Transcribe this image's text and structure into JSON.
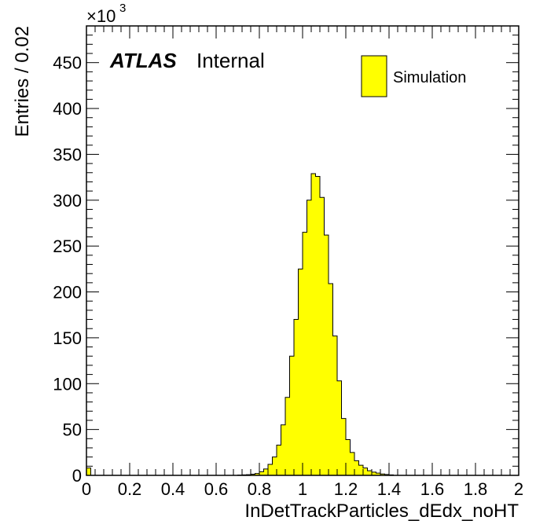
{
  "chart_data": {
    "type": "bar",
    "title": "",
    "xlabel": "InDetTrackParticles_dEdx_noHT",
    "ylabel": "Entries / 0.02",
    "y_multiplier_label": "×10",
    "y_multiplier_exponent": "3",
    "xlim": [
      0,
      2
    ],
    "ylim": [
      0,
      490
    ],
    "bin_width": 0.02,
    "x_ticks": [
      {
        "value": 0,
        "label": "0"
      },
      {
        "value": 0.2,
        "label": "0.2"
      },
      {
        "value": 0.4,
        "label": "0.4"
      },
      {
        "value": 0.6,
        "label": "0.6"
      },
      {
        "value": 0.8,
        "label": "0.8"
      },
      {
        "value": 1.0,
        "label": "1"
      },
      {
        "value": 1.2,
        "label": "1.2"
      },
      {
        "value": 1.4,
        "label": "1.4"
      },
      {
        "value": 1.6,
        "label": "1.6"
      },
      {
        "value": 1.8,
        "label": "1.8"
      },
      {
        "value": 2.0,
        "label": "2"
      }
    ],
    "y_ticks": [
      {
        "value": 0,
        "label": "0"
      },
      {
        "value": 50,
        "label": "50"
      },
      {
        "value": 100,
        "label": "100"
      },
      {
        "value": 150,
        "label": "150"
      },
      {
        "value": 200,
        "label": "200"
      },
      {
        "value": 250,
        "label": "250"
      },
      {
        "value": 300,
        "label": "300"
      },
      {
        "value": 350,
        "label": "350"
      },
      {
        "value": 400,
        "label": "400"
      },
      {
        "value": 450,
        "label": "450"
      }
    ],
    "grid": false,
    "legend_position": "top-right",
    "series": [
      {
        "name": "Simulation",
        "color": "#ffff00",
        "edge_color": "#000000",
        "bins": [
          {
            "x": 0.0,
            "y": 8
          },
          {
            "x": 0.7,
            "y": 0.3
          },
          {
            "x": 0.72,
            "y": 0.5
          },
          {
            "x": 0.74,
            "y": 0.8
          },
          {
            "x": 0.76,
            "y": 1.3
          },
          {
            "x": 0.78,
            "y": 2
          },
          {
            "x": 0.8,
            "y": 4
          },
          {
            "x": 0.82,
            "y": 7
          },
          {
            "x": 0.84,
            "y": 12
          },
          {
            "x": 0.86,
            "y": 20
          },
          {
            "x": 0.88,
            "y": 33
          },
          {
            "x": 0.9,
            "y": 55
          },
          {
            "x": 0.92,
            "y": 85
          },
          {
            "x": 0.94,
            "y": 130
          },
          {
            "x": 0.96,
            "y": 170
          },
          {
            "x": 0.98,
            "y": 225
          },
          {
            "x": 1.0,
            "y": 265
          },
          {
            "x": 1.02,
            "y": 300
          },
          {
            "x": 1.04,
            "y": 329
          },
          {
            "x": 1.06,
            "y": 326
          },
          {
            "x": 1.08,
            "y": 303
          },
          {
            "x": 1.1,
            "y": 262
          },
          {
            "x": 1.12,
            "y": 209
          },
          {
            "x": 1.14,
            "y": 152
          },
          {
            "x": 1.16,
            "y": 103
          },
          {
            "x": 1.18,
            "y": 62
          },
          {
            "x": 1.2,
            "y": 39
          },
          {
            "x": 1.22,
            "y": 25
          },
          {
            "x": 1.24,
            "y": 16
          },
          {
            "x": 1.26,
            "y": 11
          },
          {
            "x": 1.28,
            "y": 8
          },
          {
            "x": 1.3,
            "y": 5
          },
          {
            "x": 1.32,
            "y": 3.5
          },
          {
            "x": 1.34,
            "y": 2.5
          },
          {
            "x": 1.36,
            "y": 1.5
          },
          {
            "x": 1.38,
            "y": 1
          },
          {
            "x": 1.4,
            "y": 0.5
          }
        ]
      }
    ],
    "annotations": {
      "experiment": "ATLAS",
      "status": "Internal"
    },
    "legend": [
      {
        "label": "Simulation",
        "color": "#ffff00"
      }
    ]
  }
}
